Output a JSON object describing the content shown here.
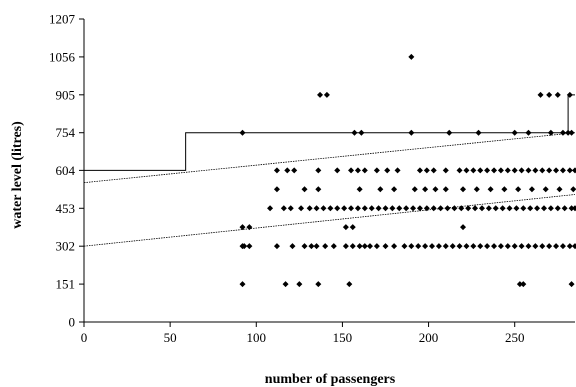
{
  "chart_data": {
    "type": "scatter",
    "xlabel": "number of passengers",
    "ylabel": "water level (litres)",
    "xlim": [
      0,
      285
    ],
    "ylim": [
      0,
      1207
    ],
    "xticks": [
      0,
      50,
      100,
      150,
      200,
      250
    ],
    "yticks": [
      0,
      151,
      302,
      453,
      604,
      754,
      905,
      1056,
      1207
    ],
    "grid": false,
    "legend": "none",
    "marker_color": "#000000",
    "series": [
      {
        "type": "scatter",
        "points": [
          [
            92,
            151
          ],
          [
            117,
            151
          ],
          [
            125,
            151
          ],
          [
            136,
            151
          ],
          [
            154,
            151
          ],
          [
            253,
            151
          ],
          [
            255,
            151
          ],
          [
            283,
            151
          ],
          [
            92,
            302
          ],
          [
            93,
            302
          ],
          [
            96,
            302
          ],
          [
            112,
            302
          ],
          [
            121,
            302
          ],
          [
            128,
            302
          ],
          [
            132,
            302
          ],
          [
            135,
            302
          ],
          [
            140,
            302
          ],
          [
            145,
            302
          ],
          [
            152,
            302
          ],
          [
            156,
            302
          ],
          [
            160,
            302
          ],
          [
            163,
            302
          ],
          [
            166,
            302
          ],
          [
            170,
            302
          ],
          [
            175,
            302
          ],
          [
            180,
            302
          ],
          [
            186,
            302
          ],
          [
            190,
            302
          ],
          [
            194,
            302
          ],
          [
            198,
            302
          ],
          [
            202,
            302
          ],
          [
            206,
            302
          ],
          [
            210,
            302
          ],
          [
            214,
            302
          ],
          [
            218,
            302
          ],
          [
            222,
            302
          ],
          [
            226,
            302
          ],
          [
            230,
            302
          ],
          [
            234,
            302
          ],
          [
            238,
            302
          ],
          [
            242,
            302
          ],
          [
            246,
            302
          ],
          [
            250,
            302
          ],
          [
            254,
            302
          ],
          [
            258,
            302
          ],
          [
            262,
            302
          ],
          [
            266,
            302
          ],
          [
            270,
            302
          ],
          [
            274,
            302
          ],
          [
            278,
            302
          ],
          [
            282,
            302
          ],
          [
            285,
            302
          ],
          [
            92,
            378
          ],
          [
            96,
            378
          ],
          [
            152,
            378
          ],
          [
            156,
            378
          ],
          [
            220,
            378
          ],
          [
            108,
            453
          ],
          [
            116,
            453
          ],
          [
            120,
            453
          ],
          [
            126,
            453
          ],
          [
            131,
            453
          ],
          [
            135,
            453
          ],
          [
            139,
            453
          ],
          [
            143,
            453
          ],
          [
            147,
            453
          ],
          [
            151,
            453
          ],
          [
            155,
            453
          ],
          [
            159,
            453
          ],
          [
            163,
            453
          ],
          [
            167,
            453
          ],
          [
            171,
            453
          ],
          [
            175,
            453
          ],
          [
            179,
            453
          ],
          [
            183,
            453
          ],
          [
            187,
            453
          ],
          [
            191,
            453
          ],
          [
            195,
            453
          ],
          [
            199,
            453
          ],
          [
            203,
            453
          ],
          [
            207,
            453
          ],
          [
            211,
            453
          ],
          [
            215,
            453
          ],
          [
            219,
            453
          ],
          [
            223,
            453
          ],
          [
            227,
            453
          ],
          [
            231,
            453
          ],
          [
            235,
            453
          ],
          [
            239,
            453
          ],
          [
            243,
            453
          ],
          [
            247,
            453
          ],
          [
            251,
            453
          ],
          [
            255,
            453
          ],
          [
            259,
            453
          ],
          [
            263,
            453
          ],
          [
            267,
            453
          ],
          [
            271,
            453
          ],
          [
            275,
            453
          ],
          [
            279,
            453
          ],
          [
            283,
            453
          ],
          [
            285,
            453
          ],
          [
            112,
            529
          ],
          [
            128,
            529
          ],
          [
            136,
            529
          ],
          [
            160,
            529
          ],
          [
            172,
            529
          ],
          [
            180,
            529
          ],
          [
            192,
            529
          ],
          [
            198,
            529
          ],
          [
            204,
            529
          ],
          [
            210,
            529
          ],
          [
            220,
            529
          ],
          [
            228,
            529
          ],
          [
            236,
            529
          ],
          [
            244,
            529
          ],
          [
            252,
            529
          ],
          [
            260,
            529
          ],
          [
            268,
            529
          ],
          [
            276,
            529
          ],
          [
            284,
            529
          ],
          [
            112,
            604
          ],
          [
            118,
            604
          ],
          [
            122,
            604
          ],
          [
            136,
            604
          ],
          [
            147,
            604
          ],
          [
            155,
            604
          ],
          [
            159,
            604
          ],
          [
            163,
            604
          ],
          [
            170,
            604
          ],
          [
            176,
            604
          ],
          [
            182,
            604
          ],
          [
            195,
            604
          ],
          [
            199,
            604
          ],
          [
            203,
            604
          ],
          [
            210,
            604
          ],
          [
            218,
            604
          ],
          [
            222,
            604
          ],
          [
            226,
            604
          ],
          [
            230,
            604
          ],
          [
            234,
            604
          ],
          [
            238,
            604
          ],
          [
            242,
            604
          ],
          [
            246,
            604
          ],
          [
            250,
            604
          ],
          [
            254,
            604
          ],
          [
            258,
            604
          ],
          [
            262,
            604
          ],
          [
            266,
            604
          ],
          [
            270,
            604
          ],
          [
            274,
            604
          ],
          [
            278,
            604
          ],
          [
            282,
            604
          ],
          [
            285,
            604
          ],
          [
            92,
            754
          ],
          [
            157,
            754
          ],
          [
            161,
            754
          ],
          [
            190,
            754
          ],
          [
            212,
            754
          ],
          [
            229,
            754
          ],
          [
            250,
            754
          ],
          [
            258,
            754
          ],
          [
            271,
            754
          ],
          [
            278,
            754
          ],
          [
            281,
            754
          ],
          [
            283,
            754
          ],
          [
            137,
            905
          ],
          [
            141,
            905
          ],
          [
            265,
            905
          ],
          [
            270,
            905
          ],
          [
            275,
            905
          ],
          [
            282,
            905
          ],
          [
            190,
            1056
          ]
        ]
      },
      {
        "type": "step",
        "points": [
          [
            0,
            604
          ],
          [
            59,
            604
          ],
          [
            59,
            754
          ],
          [
            281,
            754
          ],
          [
            281,
            905
          ],
          [
            285,
            905
          ]
        ]
      },
      {
        "type": "line",
        "style": "dotted",
        "points": [
          [
            0,
            555
          ],
          [
            285,
            754
          ]
        ]
      },
      {
        "type": "line",
        "style": "dotted",
        "points": [
          [
            0,
            302
          ],
          [
            285,
            508
          ]
        ]
      }
    ]
  }
}
